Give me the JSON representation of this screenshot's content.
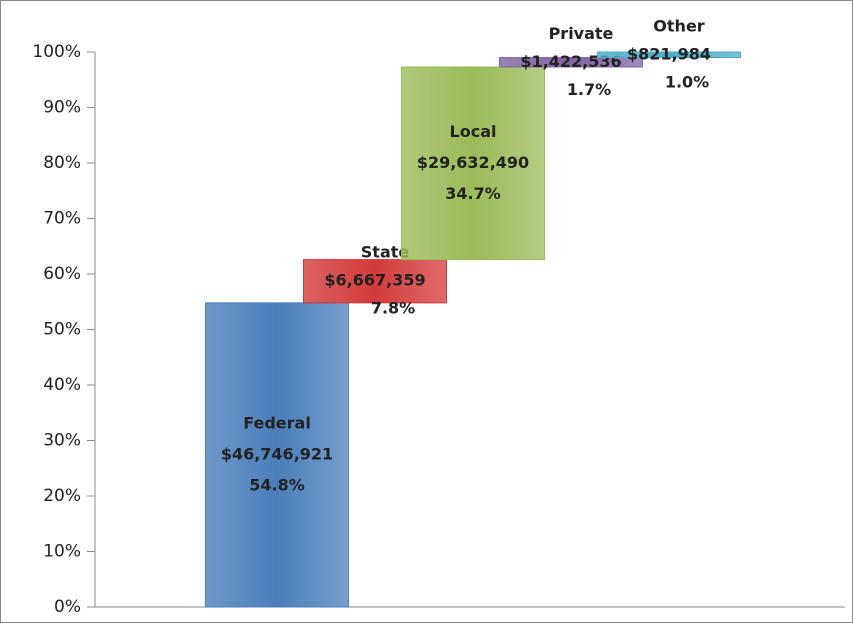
{
  "chart_data": {
    "type": "waterfall",
    "categories": [
      "Federal",
      "State",
      "Local",
      "Private",
      "Other"
    ],
    "values": [
      54.8,
      7.8,
      34.7,
      1.7,
      1.0
    ],
    "value_labels": [
      "54.8%",
      "7.8%",
      "34.7%",
      "1.7%",
      "1.0%"
    ],
    "amount_labels": [
      "$46,746,921",
      "$6,667,359",
      "$29,632,490",
      "$1,422,536",
      "$821,984"
    ],
    "colors": [
      "#4a7ebb",
      "#d43a3a",
      "#9bbb59",
      "#8064a2",
      "#4bacc6"
    ],
    "ylim": [
      0,
      100
    ],
    "yticks": [
      {
        "value": 0,
        "label": "0%"
      },
      {
        "value": 10,
        "label": "10%"
      },
      {
        "value": 20,
        "label": "20%"
      },
      {
        "value": 30,
        "label": "30%"
      },
      {
        "value": 40,
        "label": "40%"
      },
      {
        "value": 50,
        "label": "50%"
      },
      {
        "value": 60,
        "label": "60%"
      },
      {
        "value": 70,
        "label": "70%"
      },
      {
        "value": 80,
        "label": "80%"
      },
      {
        "value": 90,
        "label": "90%"
      },
      {
        "value": 100,
        "label": "100%"
      }
    ],
    "grid": false
  }
}
